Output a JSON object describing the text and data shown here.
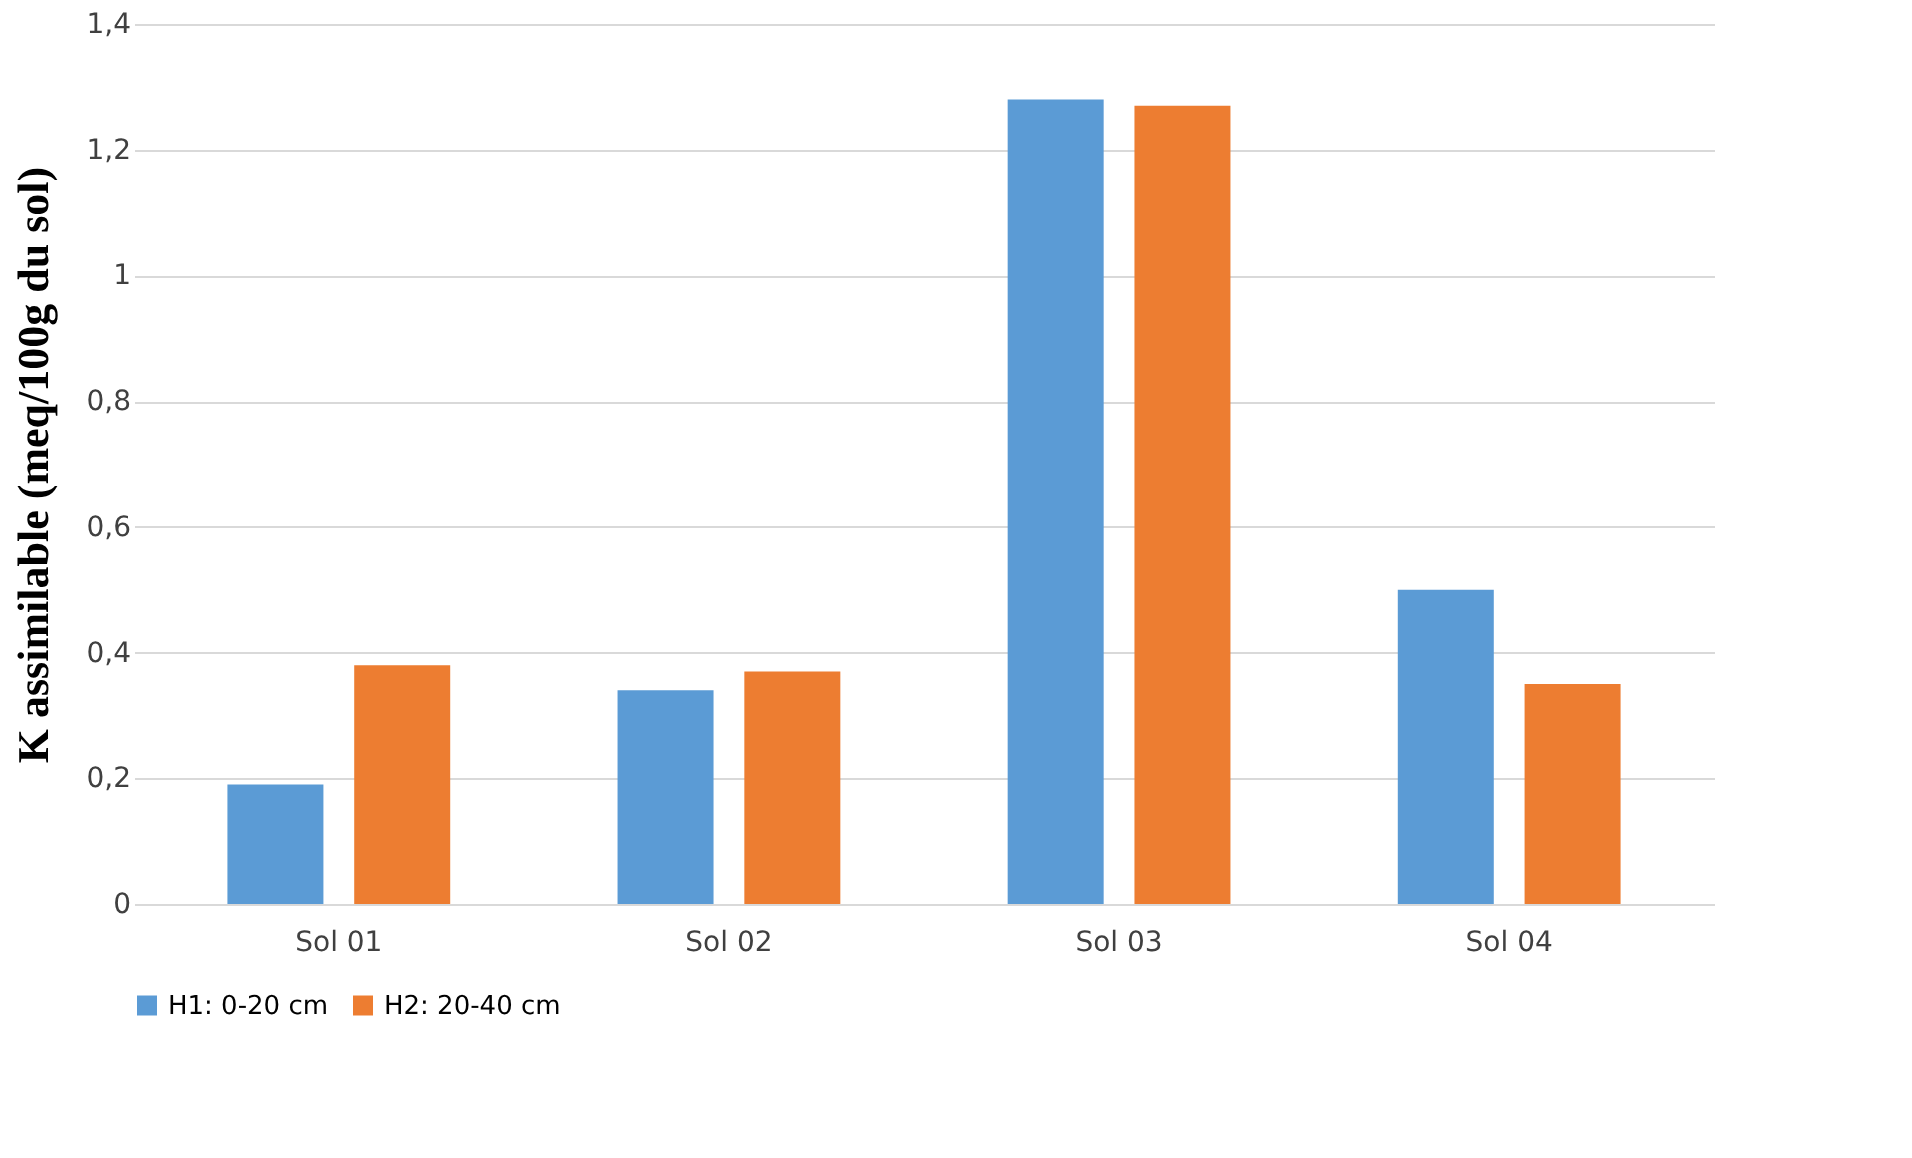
{
  "chart_data": {
    "type": "bar",
    "ylabel": "K assimilable (meq/100g du sol)",
    "categories": [
      "Sol 01",
      "Sol 02",
      "Sol 03",
      "Sol 04"
    ],
    "series": [
      {
        "name": "H1: 0-20 cm",
        "color": "#5b9bd5",
        "values": [
          0.19,
          0.34,
          1.28,
          0.5
        ]
      },
      {
        "name": "H2: 20-40 cm",
        "color": "#ed7d31",
        "values": [
          0.38,
          0.37,
          1.27,
          0.35
        ]
      }
    ],
    "ylim": [
      0,
      1.4
    ],
    "yticks": [
      0,
      {
        "value": 0.2,
        "label": "0,2"
      },
      {
        "value": 0.4,
        "label": "0,4"
      },
      {
        "value": 0.6,
        "label": "0,6"
      },
      {
        "value": 0.8,
        "label": "0,8"
      },
      1,
      {
        "value": 1.2,
        "label": "1,2"
      },
      {
        "value": 1.4,
        "label": "1,4"
      }
    ],
    "grid": "y",
    "legend": "bottom"
  }
}
